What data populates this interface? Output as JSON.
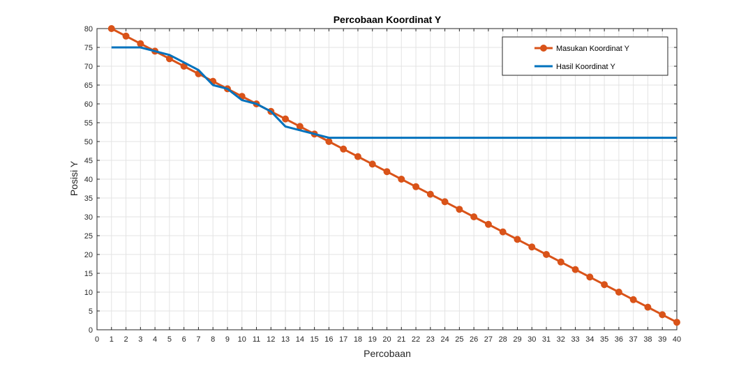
{
  "chart_data": {
    "type": "line",
    "title": "Percobaan Koordinat Y",
    "xlabel": "Percobaan",
    "ylabel": "Posisi Y",
    "xlim": [
      0,
      40
    ],
    "ylim": [
      0,
      80
    ],
    "x_ticks": [
      0,
      1,
      2,
      3,
      4,
      5,
      6,
      7,
      8,
      9,
      10,
      11,
      12,
      13,
      14,
      15,
      16,
      17,
      18,
      19,
      20,
      21,
      22,
      23,
      24,
      25,
      26,
      27,
      28,
      29,
      30,
      31,
      32,
      33,
      34,
      35,
      36,
      37,
      38,
      39,
      40
    ],
    "y_ticks": [
      0,
      5,
      10,
      15,
      20,
      25,
      30,
      35,
      40,
      45,
      50,
      55,
      60,
      65,
      70,
      75,
      80
    ],
    "grid": true,
    "legend_position": "top-right",
    "series": [
      {
        "name": "Masukan Koordinat Y",
        "color": "#D95319",
        "marker": "circle",
        "x": [
          1,
          2,
          3,
          4,
          5,
          6,
          7,
          8,
          9,
          10,
          11,
          12,
          13,
          14,
          15,
          16,
          17,
          18,
          19,
          20,
          21,
          22,
          23,
          24,
          25,
          26,
          27,
          28,
          29,
          30,
          31,
          32,
          33,
          34,
          35,
          36,
          37,
          38,
          39,
          40
        ],
        "values": [
          80,
          78,
          76,
          74,
          72,
          70,
          68,
          66,
          64,
          62,
          60,
          58,
          56,
          54,
          52,
          50,
          48,
          46,
          44,
          42,
          40,
          38,
          36,
          34,
          32,
          30,
          28,
          26,
          24,
          22,
          20,
          18,
          16,
          14,
          12,
          10,
          8,
          6,
          4,
          2
        ]
      },
      {
        "name": "Hasil Koordinat Y",
        "color": "#0072BD",
        "marker": "none",
        "x": [
          1,
          2,
          3,
          4,
          5,
          6,
          7,
          8,
          9,
          10,
          11,
          12,
          13,
          14,
          15,
          16,
          17,
          18,
          19,
          20,
          21,
          22,
          23,
          24,
          25,
          26,
          27,
          28,
          29,
          30,
          31,
          32,
          33,
          34,
          35,
          36,
          37,
          38,
          39,
          40
        ],
        "values": [
          75,
          75,
          75,
          74,
          73,
          71,
          69,
          65,
          64,
          61,
          60,
          58,
          54,
          53,
          52,
          51,
          51,
          51,
          51,
          51,
          51,
          51,
          51,
          51,
          51,
          51,
          51,
          51,
          51,
          51,
          51,
          51,
          51,
          51,
          51,
          51,
          51,
          51,
          51,
          51
        ]
      }
    ]
  }
}
